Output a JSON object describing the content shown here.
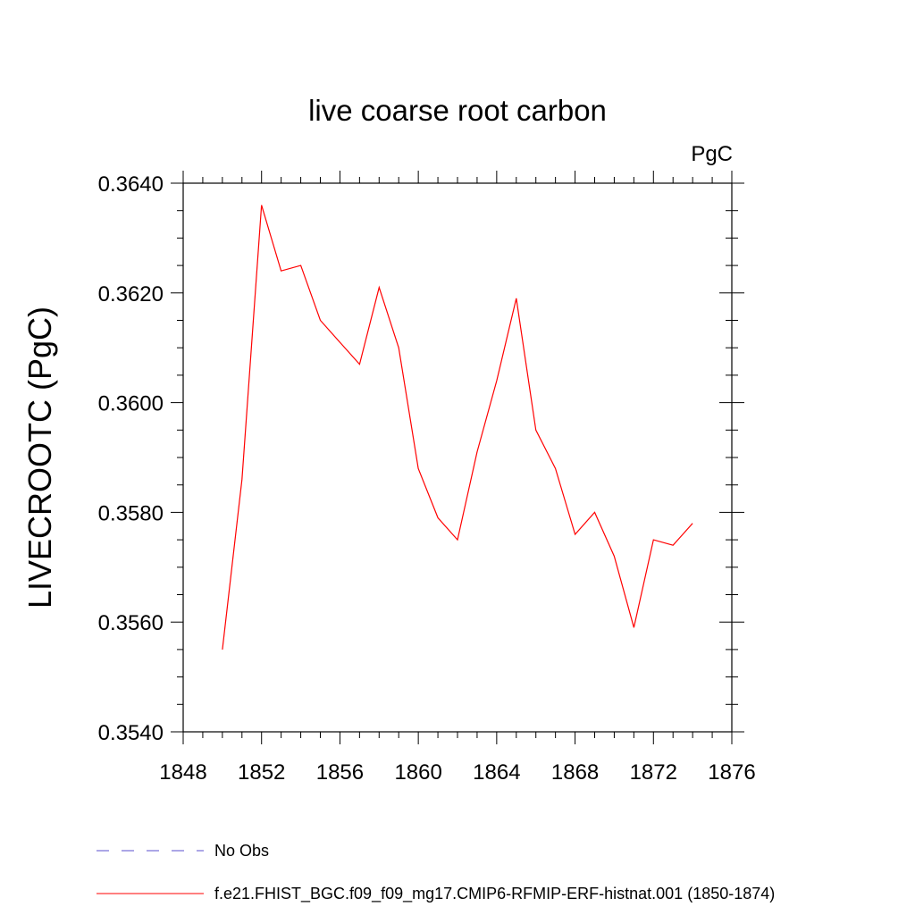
{
  "chart_data": {
    "type": "line",
    "title": "live coarse root carbon",
    "units_label": "PgC",
    "xlabel": "",
    "ylabel": "LIVECROOTC  (PgC)",
    "xlim": [
      1848,
      1876
    ],
    "ylim": [
      0.354,
      0.364
    ],
    "x_ticks": [
      "1848",
      "1852",
      "1856",
      "1860",
      "1864",
      "1868",
      "1872",
      "1876"
    ],
    "y_ticks": [
      "0.3540",
      "0.3560",
      "0.3580",
      "0.3600",
      "0.3620",
      "0.3640"
    ],
    "grid": false,
    "legend_placement": "bottom",
    "series": [
      {
        "name": "f.e21.FHIST_BGC.f09_f09_mg17.CMIP6-RFMIP-ERF-histnat.001 (1850-1874)",
        "color": "#ff0000",
        "style": "solid",
        "x": [
          1850,
          1851,
          1852,
          1853,
          1854,
          1855,
          1856,
          1857,
          1858,
          1859,
          1860,
          1861,
          1862,
          1863,
          1864,
          1865,
          1866,
          1867,
          1868,
          1869,
          1870,
          1871,
          1872,
          1873,
          1874
        ],
        "values": [
          0.3555,
          0.3586,
          0.3636,
          0.3624,
          0.3625,
          0.3615,
          0.3611,
          0.3607,
          0.3621,
          0.361,
          0.3588,
          0.3579,
          0.3575,
          0.3591,
          0.3604,
          0.3619,
          0.3595,
          0.3588,
          0.3576,
          0.358,
          0.3572,
          0.3559,
          0.3575,
          0.3574,
          0.3578
        ]
      },
      {
        "name": "No Obs",
        "color": "#5a4fcf",
        "style": "dashed",
        "x": [],
        "values": []
      }
    ]
  }
}
